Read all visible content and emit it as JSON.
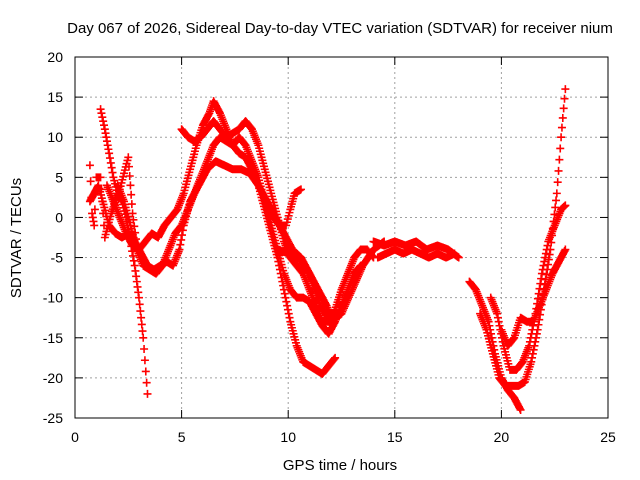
{
  "chart_data": {
    "type": "scatter",
    "title": "Day 067 of 2026, Sidereal Day-to-day VTEC variation (SDTVAR) for receiver nium",
    "xlabel": "GPS time / hours",
    "ylabel": "SDTVAR / TECUs",
    "xlim": [
      0,
      25
    ],
    "ylim": [
      -25,
      20
    ],
    "xticks": [
      0,
      5,
      10,
      15,
      20,
      25
    ],
    "yticks": [
      -25,
      -20,
      -15,
      -10,
      -5,
      0,
      5,
      10,
      15,
      20
    ],
    "grid": true,
    "marker": "+",
    "color": "#ff0000",
    "series": [
      {
        "name": "trace-1",
        "points": [
          [
            0.7,
            2
          ],
          [
            0.9,
            3
          ],
          [
            1.1,
            4
          ],
          [
            1.3,
            2
          ],
          [
            1.6,
            -1
          ],
          [
            1.9,
            -2
          ],
          [
            2.2,
            -2.5
          ],
          [
            2.5,
            -2
          ],
          [
            2.8,
            -3
          ],
          [
            3.1,
            -4.5
          ],
          [
            3.4,
            -6
          ],
          [
            3.7,
            -6.5
          ],
          [
            4.0,
            -6
          ],
          [
            4.3,
            -5.5
          ],
          [
            4.6,
            -6
          ],
          [
            4.9,
            -4
          ],
          [
            5.1,
            -1
          ],
          [
            5.4,
            2
          ],
          [
            5.8,
            4
          ],
          [
            6.2,
            6
          ],
          [
            6.6,
            7
          ],
          [
            7.0,
            6.5
          ],
          [
            7.4,
            6
          ],
          [
            7.8,
            6
          ],
          [
            8.2,
            5.5
          ],
          [
            8.6,
            4
          ],
          [
            9.0,
            2
          ],
          [
            9.4,
            0
          ],
          [
            9.8,
            -2
          ],
          [
            10.2,
            -4
          ],
          [
            10.6,
            -5
          ],
          [
            11.0,
            -7
          ],
          [
            11.4,
            -9
          ],
          [
            11.8,
            -11
          ],
          [
            12.1,
            -13
          ]
        ]
      },
      {
        "name": "trace-2",
        "points": [
          [
            1.2,
            13.5
          ],
          [
            1.4,
            11
          ],
          [
            1.6,
            8
          ],
          [
            1.8,
            5
          ],
          [
            2.0,
            3
          ],
          [
            2.2,
            2
          ],
          [
            2.4,
            0
          ],
          [
            2.6,
            -3
          ],
          [
            2.8,
            -6
          ],
          [
            3.0,
            -10
          ],
          [
            3.2,
            -15
          ],
          [
            3.4,
            -22
          ]
        ]
      },
      {
        "name": "trace-3",
        "points": [
          [
            1.5,
            4
          ],
          [
            1.8,
            2
          ],
          [
            2.1,
            0
          ],
          [
            2.4,
            -2
          ],
          [
            2.7,
            -3.5
          ],
          [
            3.0,
            -4
          ],
          [
            3.3,
            -3
          ],
          [
            3.6,
            -2
          ],
          [
            3.9,
            -2.5
          ],
          [
            4.2,
            -1
          ],
          [
            4.5,
            0
          ],
          [
            4.8,
            1
          ],
          [
            5.1,
            3
          ],
          [
            5.4,
            6
          ],
          [
            5.7,
            9
          ],
          [
            6.0,
            11.5
          ],
          [
            6.3,
            13
          ],
          [
            6.5,
            14.5
          ],
          [
            6.8,
            13
          ],
          [
            7.1,
            11
          ],
          [
            7.4,
            9
          ],
          [
            7.7,
            8
          ],
          [
            8.0,
            7.5
          ],
          [
            8.3,
            6
          ],
          [
            8.6,
            4
          ],
          [
            8.9,
            1
          ],
          [
            9.2,
            -2
          ],
          [
            9.5,
            -5
          ],
          [
            9.8,
            -9
          ],
          [
            10.1,
            -13
          ],
          [
            10.4,
            -16
          ],
          [
            10.7,
            -18
          ],
          [
            11.0,
            -18.5
          ],
          [
            11.3,
            -19
          ],
          [
            11.6,
            -19.5
          ],
          [
            11.9,
            -18.5
          ],
          [
            12.2,
            -17.5
          ]
        ]
      },
      {
        "name": "trace-4",
        "points": [
          [
            2.0,
            4
          ],
          [
            2.3,
            2
          ],
          [
            2.6,
            -1
          ],
          [
            2.9,
            -4
          ],
          [
            3.2,
            -6
          ],
          [
            3.5,
            -6.5
          ],
          [
            3.8,
            -7
          ],
          [
            4.1,
            -6
          ],
          [
            4.4,
            -4
          ],
          [
            4.7,
            -2
          ],
          [
            5.0,
            -1
          ],
          [
            5.3,
            1
          ],
          [
            5.6,
            3
          ],
          [
            5.9,
            5
          ],
          [
            6.2,
            7
          ],
          [
            6.5,
            9
          ],
          [
            6.8,
            10
          ],
          [
            7.1,
            9.5
          ],
          [
            7.4,
            9
          ],
          [
            7.7,
            10
          ],
          [
            8.0,
            9
          ],
          [
            8.3,
            7
          ],
          [
            8.6,
            5
          ],
          [
            8.9,
            2
          ],
          [
            9.2,
            -1
          ],
          [
            9.5,
            -4
          ],
          [
            9.8,
            -7
          ],
          [
            10.1,
            -9
          ],
          [
            10.4,
            -10
          ],
          [
            10.7,
            -10
          ],
          [
            11.0,
            -10.5
          ],
          [
            11.3,
            -12
          ],
          [
            11.6,
            -13.5
          ],
          [
            11.9,
            -14.5
          ],
          [
            12.2,
            -13
          ],
          [
            12.5,
            -11
          ],
          [
            12.8,
            -9
          ],
          [
            13.1,
            -7
          ],
          [
            13.4,
            -6
          ]
        ]
      },
      {
        "name": "trace-5",
        "points": [
          [
            5.0,
            11
          ],
          [
            5.3,
            10
          ],
          [
            5.6,
            9.5
          ],
          [
            5.9,
            10
          ],
          [
            6.2,
            11
          ],
          [
            6.5,
            12
          ],
          [
            6.8,
            11
          ],
          [
            7.1,
            10
          ],
          [
            7.4,
            10.5
          ],
          [
            7.7,
            11
          ],
          [
            8.0,
            12
          ],
          [
            8.3,
            11
          ],
          [
            8.6,
            9
          ],
          [
            8.9,
            6
          ],
          [
            9.2,
            3
          ],
          [
            9.5,
            0
          ],
          [
            9.8,
            -3
          ],
          [
            10.1,
            -5
          ],
          [
            10.4,
            -6
          ],
          [
            10.7,
            -7
          ],
          [
            11.0,
            -9
          ],
          [
            11.3,
            -11
          ],
          [
            11.6,
            -13
          ],
          [
            11.9,
            -13
          ],
          [
            12.2,
            -11.5
          ],
          [
            12.5,
            -9
          ],
          [
            12.8,
            -7
          ],
          [
            13.1,
            -5
          ],
          [
            13.4,
            -4
          ],
          [
            13.7,
            -4
          ],
          [
            14.0,
            -5
          ]
        ]
      },
      {
        "name": "trace-6",
        "points": [
          [
            9.0,
            1
          ],
          [
            9.3,
            0
          ],
          [
            9.6,
            -1
          ],
          [
            9.9,
            -1
          ],
          [
            10.1,
            1
          ],
          [
            10.3,
            3
          ],
          [
            10.6,
            3.5
          ]
        ]
      },
      {
        "name": "trace-7",
        "points": [
          [
            9.5,
            -4
          ],
          [
            10.0,
            -4.5
          ],
          [
            10.5,
            -5
          ],
          [
            11.0,
            -7
          ],
          [
            11.5,
            -11
          ],
          [
            12.0,
            -13
          ],
          [
            12.5,
            -12
          ],
          [
            13.0,
            -9
          ],
          [
            13.5,
            -6
          ],
          [
            14.0,
            -4
          ],
          [
            14.5,
            -3
          ]
        ]
      },
      {
        "name": "trace-8",
        "points": [
          [
            14.0,
            -3
          ],
          [
            14.5,
            -3.5
          ],
          [
            15.0,
            -3
          ],
          [
            15.5,
            -3.5
          ],
          [
            16.0,
            -3
          ],
          [
            16.5,
            -4
          ],
          [
            17.0,
            -3.5
          ],
          [
            17.5,
            -4
          ],
          [
            18.0,
            -5
          ]
        ]
      },
      {
        "name": "trace-9",
        "points": [
          [
            14.2,
            -5
          ],
          [
            14.6,
            -4.5
          ],
          [
            15.0,
            -4
          ],
          [
            15.4,
            -4.5
          ],
          [
            15.8,
            -4
          ],
          [
            16.2,
            -4.5
          ],
          [
            16.6,
            -5
          ],
          [
            17.0,
            -4.5
          ],
          [
            17.4,
            -5
          ],
          [
            17.8,
            -4.5
          ]
        ]
      },
      {
        "name": "trace-10",
        "points": [
          [
            18.5,
            -8
          ],
          [
            18.8,
            -9
          ],
          [
            19.1,
            -11
          ],
          [
            19.4,
            -13
          ],
          [
            19.7,
            -17
          ],
          [
            20.0,
            -20
          ],
          [
            20.3,
            -21.5
          ],
          [
            20.6,
            -22.5
          ],
          [
            20.9,
            -24
          ]
        ]
      },
      {
        "name": "trace-11",
        "points": [
          [
            19.0,
            -12
          ],
          [
            19.3,
            -14
          ],
          [
            19.6,
            -17
          ],
          [
            19.9,
            -20
          ],
          [
            20.2,
            -21
          ],
          [
            20.5,
            -21
          ],
          [
            20.8,
            -21
          ],
          [
            21.1,
            -20.5
          ],
          [
            21.4,
            -18
          ],
          [
            21.7,
            -14
          ],
          [
            22.0,
            -9
          ],
          [
            22.3,
            -4
          ],
          [
            22.6,
            3
          ],
          [
            22.8,
            10
          ],
          [
            23.0,
            16
          ]
        ]
      },
      {
        "name": "trace-12",
        "points": [
          [
            19.5,
            -10
          ],
          [
            19.8,
            -12
          ],
          [
            20.1,
            -16
          ],
          [
            20.4,
            -19
          ],
          [
            20.7,
            -19
          ],
          [
            21.0,
            -18
          ],
          [
            21.3,
            -16
          ],
          [
            21.6,
            -12
          ],
          [
            21.9,
            -7
          ],
          [
            22.2,
            -3
          ],
          [
            22.5,
            -1
          ],
          [
            22.8,
            1
          ],
          [
            23.0,
            1.5
          ]
        ]
      },
      {
        "name": "trace-13",
        "points": [
          [
            20.0,
            -14
          ],
          [
            20.3,
            -16
          ],
          [
            20.6,
            -15
          ],
          [
            20.9,
            -12.5
          ],
          [
            21.2,
            -13
          ],
          [
            21.5,
            -13
          ],
          [
            21.8,
            -11
          ],
          [
            22.1,
            -9
          ],
          [
            22.4,
            -7
          ],
          [
            22.7,
            -5.5
          ],
          [
            23.0,
            -4
          ]
        ]
      },
      {
        "name": "trace-14",
        "points": [
          [
            0.7,
            6.5
          ],
          [
            0.8,
            0.5
          ],
          [
            0.9,
            -1
          ],
          [
            1.0,
            5
          ],
          [
            1.2,
            5
          ],
          [
            1.4,
            -2.5
          ],
          [
            1.7,
            0.5
          ],
          [
            2.1,
            3.5
          ],
          [
            2.5,
            7.5
          ],
          [
            2.7,
            0.5
          ],
          [
            2.9,
            -3.5
          ]
        ]
      }
    ]
  }
}
